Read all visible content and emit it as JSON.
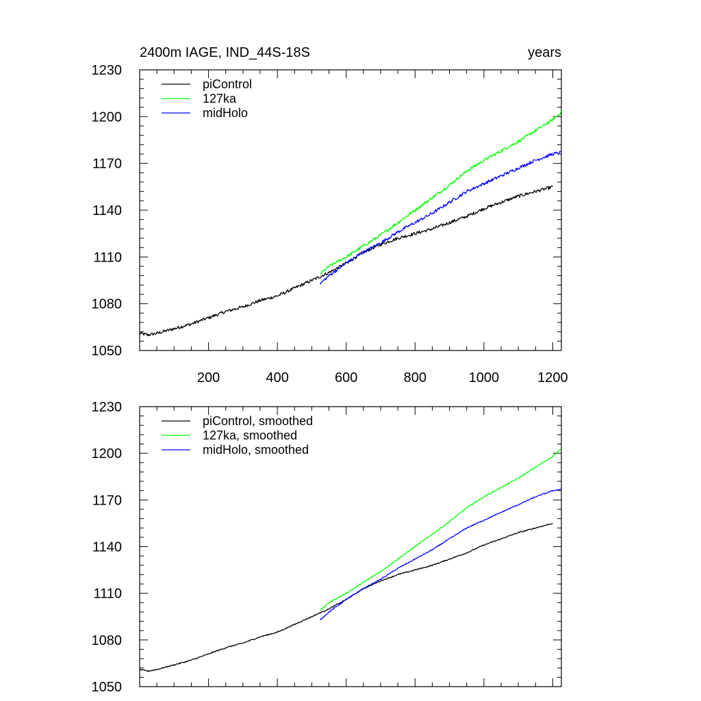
{
  "figure": {
    "title_left": "2400m IAGE, IND_44S-18S",
    "title_right": "years"
  },
  "chart_data": [
    {
      "type": "line",
      "title": "2400m IAGE, IND_44S-18S",
      "units_label": "years",
      "xlim": [
        0,
        1225
      ],
      "ylim": [
        1050,
        1230
      ],
      "yticks": [
        1050,
        1080,
        1110,
        1140,
        1170,
        1200,
        1230
      ],
      "xticks": [
        200,
        400,
        600,
        800,
        1000,
        1200
      ],
      "xtick_labels": [
        "200",
        "400",
        "600",
        "800",
        "1000",
        "1200"
      ],
      "legend": [
        "piControl",
        "127ka",
        "midHolo"
      ],
      "legend_position": "top-left",
      "noise": 1.0,
      "series": [
        {
          "name": "piControl",
          "color": "#000000",
          "x": [
            0,
            25,
            50,
            100,
            150,
            200,
            250,
            300,
            350,
            400,
            450,
            500,
            550,
            600,
            650,
            700,
            750,
            800,
            850,
            900,
            950,
            1000,
            1050,
            1100,
            1150,
            1200
          ],
          "y": [
            1061,
            1060,
            1061,
            1064,
            1067,
            1071,
            1075,
            1078,
            1082,
            1085,
            1090,
            1095,
            1100,
            1106,
            1113,
            1118,
            1122,
            1125,
            1128,
            1132,
            1136,
            1141,
            1145,
            1149,
            1152,
            1155
          ]
        },
        {
          "name": "127ka",
          "color": "#00ff00",
          "x": [
            525,
            550,
            600,
            650,
            700,
            750,
            800,
            850,
            900,
            950,
            1000,
            1050,
            1100,
            1150,
            1200,
            1225
          ],
          "y": [
            1099,
            1104,
            1110,
            1117,
            1124,
            1132,
            1140,
            1148,
            1156,
            1165,
            1172,
            1178,
            1184,
            1191,
            1198,
            1203
          ]
        },
        {
          "name": "midHolo",
          "color": "#0000ff",
          "x": [
            525,
            550,
            600,
            650,
            700,
            750,
            800,
            850,
            900,
            950,
            1000,
            1050,
            1100,
            1150,
            1200,
            1225
          ],
          "y": [
            1093,
            1098,
            1106,
            1113,
            1119,
            1126,
            1132,
            1138,
            1145,
            1152,
            1157,
            1162,
            1167,
            1172,
            1176,
            1177
          ]
        }
      ]
    },
    {
      "type": "line",
      "title": "",
      "xlim": [
        0,
        1225
      ],
      "ylim": [
        1050,
        1230
      ],
      "yticks": [
        1050,
        1080,
        1110,
        1140,
        1170,
        1200,
        1230
      ],
      "xticks": [
        200,
        400,
        600,
        800,
        1000,
        1200
      ],
      "xtick_labels": [],
      "legend": [
        "piControl, smoothed",
        "127ka, smoothed",
        "midHolo, smoothed"
      ],
      "legend_position": "top-left",
      "noise": 0.35,
      "series": [
        {
          "name": "piControl, smoothed",
          "color": "#000000",
          "x": [
            0,
            25,
            50,
            100,
            150,
            200,
            250,
            300,
            350,
            400,
            450,
            500,
            550,
            600,
            650,
            700,
            750,
            800,
            850,
            900,
            950,
            1000,
            1050,
            1100,
            1150,
            1200
          ],
          "y": [
            1061,
            1060,
            1061,
            1064,
            1067,
            1071,
            1075,
            1078,
            1082,
            1085,
            1090,
            1095,
            1100,
            1106,
            1113,
            1118,
            1122,
            1125,
            1128,
            1132,
            1136,
            1141,
            1145,
            1149,
            1152,
            1155
          ]
        },
        {
          "name": "127ka, smoothed",
          "color": "#00ff00",
          "x": [
            525,
            550,
            600,
            650,
            700,
            750,
            800,
            850,
            900,
            950,
            1000,
            1050,
            1100,
            1150,
            1200,
            1225
          ],
          "y": [
            1099,
            1104,
            1110,
            1117,
            1124,
            1132,
            1140,
            1148,
            1156,
            1165,
            1172,
            1178,
            1184,
            1191,
            1198,
            1203
          ]
        },
        {
          "name": "midHolo, smoothed",
          "color": "#0000ff",
          "x": [
            525,
            550,
            600,
            650,
            700,
            750,
            800,
            850,
            900,
            950,
            1000,
            1050,
            1100,
            1150,
            1200,
            1225
          ],
          "y": [
            1093,
            1098,
            1106,
            1113,
            1119,
            1126,
            1132,
            1138,
            1145,
            1152,
            1157,
            1162,
            1167,
            1172,
            1176,
            1177
          ]
        }
      ]
    }
  ]
}
